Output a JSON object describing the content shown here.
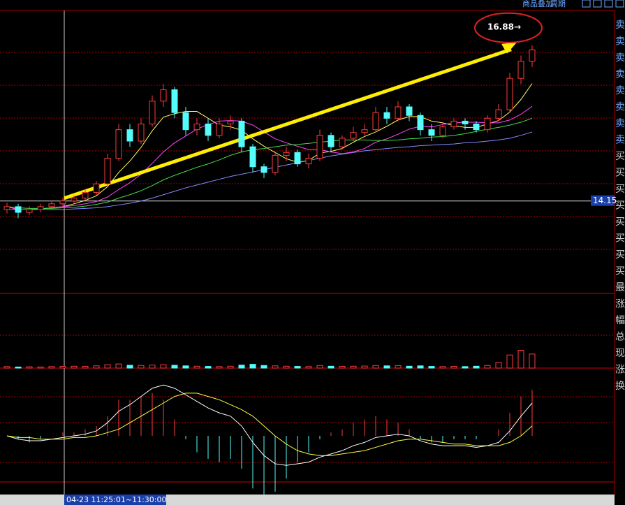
{
  "toolbar": {
    "overlay": "商品叠加",
    "period": "周期"
  },
  "sidebar": [
    "卖",
    "卖",
    "卖",
    "卖",
    "卖",
    "卖",
    "卖",
    "卖",
    "买",
    "买",
    "买",
    "买",
    "买",
    "买",
    "买",
    "买",
    "最",
    "涨",
    "幅",
    "总",
    "现",
    "涨",
    "换"
  ],
  "chart_data": {
    "type": "candlestick",
    "time_label": "04-23 11:25:01~11:30:00",
    "current_price": 14.15,
    "annotation": {
      "value": 16.88,
      "label": "16.88→"
    },
    "ylim": [
      12.53,
      17.49
    ],
    "up_color": "#ff3a3a",
    "down_color": "#54fcfc",
    "open": [
      14.0,
      14.05,
      13.95,
      14.0,
      14.05,
      14.1,
      14.15,
      14.2,
      14.3,
      14.45,
      14.9,
      15.4,
      15.2,
      15.5,
      15.9,
      16.1,
      15.7,
      15.4,
      15.5,
      15.3,
      15.5,
      15.55,
      15.1,
      14.75,
      14.65,
      14.95,
      15.0,
      14.8,
      14.9,
      15.3,
      15.1,
      15.25,
      15.35,
      15.4,
      15.7,
      15.6,
      15.8,
      15.65,
      15.4,
      15.3,
      15.45,
      15.55,
      15.5,
      15.4,
      15.6,
      15.75,
      16.3,
      16.6
    ],
    "high": [
      14.12,
      14.1,
      14.06,
      14.1,
      14.16,
      14.2,
      14.25,
      14.36,
      14.5,
      14.98,
      15.5,
      15.5,
      15.6,
      16.0,
      16.2,
      16.15,
      15.8,
      15.6,
      15.6,
      15.6,
      15.65,
      15.6,
      15.15,
      14.8,
      15.0,
      15.1,
      15.05,
      14.98,
      15.4,
      15.35,
      15.3,
      15.45,
      15.5,
      15.8,
      15.8,
      15.9,
      15.85,
      15.7,
      15.5,
      15.5,
      15.6,
      15.6,
      15.55,
      15.65,
      15.85,
      16.4,
      16.7,
      16.88
    ],
    "low": [
      13.93,
      13.85,
      13.9,
      13.95,
      14.0,
      14.05,
      14.1,
      14.15,
      14.25,
      14.4,
      14.85,
      15.1,
      15.15,
      15.45,
      15.8,
      15.6,
      15.3,
      15.3,
      15.2,
      15.25,
      15.4,
      15.0,
      14.65,
      14.55,
      14.6,
      14.85,
      14.75,
      14.72,
      14.85,
      15.0,
      15.05,
      15.2,
      15.3,
      15.35,
      15.5,
      15.55,
      15.55,
      15.3,
      15.2,
      15.25,
      15.4,
      15.4,
      15.35,
      15.35,
      15.55,
      15.7,
      16.2,
      16.5
    ],
    "close": [
      14.05,
      13.95,
      14.0,
      14.05,
      14.1,
      14.15,
      14.2,
      14.3,
      14.45,
      14.9,
      15.4,
      15.2,
      15.5,
      15.9,
      16.1,
      15.7,
      15.4,
      15.5,
      15.3,
      15.5,
      15.55,
      15.1,
      14.75,
      14.65,
      14.95,
      15.0,
      14.8,
      14.9,
      15.3,
      15.1,
      15.25,
      15.35,
      15.4,
      15.7,
      15.6,
      15.8,
      15.65,
      15.4,
      15.3,
      15.45,
      15.55,
      15.5,
      15.4,
      15.6,
      15.75,
      16.3,
      16.6,
      16.8
    ],
    "ma": [
      {
        "color": "#ffff66",
        "values": [
          14.05,
          14.0,
          14.0,
          14.01,
          14.03,
          14.05,
          14.1,
          14.16,
          14.24,
          14.4,
          14.65,
          14.85,
          15.09,
          15.38,
          15.62,
          15.68,
          15.72,
          15.72,
          15.6,
          15.48,
          15.45,
          15.39,
          15.24,
          15.11,
          15.0,
          14.89,
          14.83,
          14.86,
          14.99,
          15.02,
          15.07,
          15.18,
          15.28,
          15.36,
          15.46,
          15.57,
          15.63,
          15.63,
          15.55,
          15.52,
          15.47,
          15.44,
          15.44,
          15.5,
          15.56,
          15.71,
          15.93,
          16.21
        ]
      },
      {
        "color": "#ff44ff",
        "values": [
          14.05,
          14.0,
          14.0,
          14.01,
          14.03,
          14.05,
          14.07,
          14.1,
          14.14,
          14.22,
          14.35,
          14.47,
          14.62,
          14.81,
          15.01,
          15.17,
          15.29,
          15.41,
          15.49,
          15.55,
          15.56,
          15.55,
          15.48,
          15.36,
          15.24,
          15.17,
          15.11,
          15.05,
          15.05,
          15.01,
          14.98,
          15.01,
          15.07,
          15.18,
          15.24,
          15.32,
          15.41,
          15.46,
          15.45,
          15.49,
          15.52,
          15.53,
          15.53,
          15.52,
          15.52,
          15.57,
          15.67,
          15.81
        ]
      },
      {
        "color": "#44dd44",
        "values": [
          14.05,
          14.03,
          14.02,
          14.02,
          14.02,
          14.03,
          14.04,
          14.06,
          14.09,
          14.13,
          14.2,
          14.26,
          14.33,
          14.42,
          14.52,
          14.6,
          14.67,
          14.74,
          14.8,
          14.87,
          14.95,
          15.01,
          15.05,
          15.07,
          15.1,
          15.13,
          15.14,
          15.16,
          15.18,
          15.2,
          15.22,
          15.22,
          15.22,
          15.21,
          15.21,
          15.22,
          15.24,
          15.25,
          15.27,
          15.28,
          15.3,
          15.33,
          15.37,
          15.41,
          15.44,
          15.48,
          15.53,
          15.6
        ]
      },
      {
        "color": "#8888ff",
        "values": [
          14.0,
          14.0,
          14.0,
          14.0,
          14.0,
          14.0,
          14.01,
          14.02,
          14.03,
          14.05,
          14.08,
          14.11,
          14.15,
          14.2,
          14.26,
          14.32,
          14.38,
          14.43,
          14.48,
          14.53,
          14.58,
          14.62,
          14.66,
          14.7,
          14.74,
          14.78,
          14.82,
          14.86,
          14.9,
          14.94,
          14.97,
          15.0,
          15.03,
          15.05,
          15.07,
          15.09,
          15.1,
          15.12,
          15.13,
          15.14,
          15.15,
          15.17,
          15.18,
          15.2,
          15.22,
          15.25,
          15.3,
          15.36
        ]
      }
    ],
    "volume": {
      "ylim": [
        0,
        380
      ],
      "values": [
        8,
        6,
        7,
        6,
        8,
        9,
        10,
        9,
        12,
        18,
        22,
        15,
        14,
        16,
        18,
        15,
        12,
        10,
        9,
        8,
        10,
        16,
        20,
        14,
        12,
        10,
        9,
        8,
        14,
        10,
        9,
        10,
        11,
        14,
        12,
        13,
        10,
        12,
        9,
        8,
        9,
        8,
        10,
        14,
        30,
        70,
        95,
        75
      ]
    },
    "macd": {
      "ylim": [
        -0.4,
        0.4
      ],
      "dif_color": "#ffffff",
      "dea_color": "#ffff44",
      "dif": [
        0.0,
        -0.02,
        -0.03,
        -0.03,
        -0.02,
        -0.01,
        0.0,
        0.01,
        0.03,
        0.08,
        0.15,
        0.19,
        0.24,
        0.29,
        0.31,
        0.29,
        0.25,
        0.21,
        0.17,
        0.14,
        0.12,
        0.06,
        -0.04,
        -0.12,
        -0.17,
        -0.18,
        -0.17,
        -0.16,
        -0.13,
        -0.11,
        -0.09,
        -0.06,
        -0.04,
        -0.01,
        0.0,
        0.01,
        0.0,
        -0.03,
        -0.05,
        -0.06,
        -0.06,
        -0.06,
        -0.07,
        -0.06,
        -0.04,
        0.03,
        0.12,
        0.2
      ],
      "dea": [
        0.0,
        -0.01,
        -0.01,
        -0.02,
        -0.02,
        -0.02,
        -0.01,
        -0.01,
        0.0,
        0.02,
        0.04,
        0.08,
        0.12,
        0.16,
        0.2,
        0.24,
        0.26,
        0.26,
        0.24,
        0.22,
        0.19,
        0.16,
        0.12,
        0.06,
        0.0,
        -0.05,
        -0.09,
        -0.11,
        -0.12,
        -0.12,
        -0.11,
        -0.1,
        -0.09,
        -0.07,
        -0.05,
        -0.03,
        -0.02,
        -0.02,
        -0.03,
        -0.04,
        -0.05,
        -0.05,
        -0.06,
        -0.06,
        -0.06,
        -0.04,
        0.0,
        0.06
      ],
      "hist": [
        0,
        -0.02,
        -0.04,
        -0.02,
        0,
        0.02,
        0.02,
        0.04,
        0.06,
        0.12,
        0.22,
        0.22,
        0.24,
        0.26,
        0.22,
        0.1,
        -0.02,
        -0.1,
        -0.14,
        -0.16,
        -0.14,
        -0.2,
        -0.32,
        -0.36,
        -0.34,
        -0.26,
        -0.16,
        -0.1,
        -0.02,
        0.02,
        0.04,
        0.08,
        0.1,
        0.12,
        0.1,
        0.08,
        0.04,
        -0.02,
        -0.04,
        -0.04,
        -0.02,
        -0.02,
        -0.02,
        0,
        0.04,
        0.14,
        0.24,
        0.28
      ]
    }
  }
}
